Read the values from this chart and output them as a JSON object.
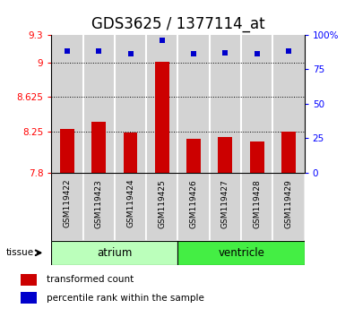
{
  "title": "GDS3625 / 1377114_at",
  "samples": [
    "GSM119422",
    "GSM119423",
    "GSM119424",
    "GSM119425",
    "GSM119426",
    "GSM119427",
    "GSM119428",
    "GSM119429"
  ],
  "red_values": [
    8.28,
    8.35,
    8.24,
    9.01,
    8.17,
    8.19,
    8.14,
    8.25
  ],
  "blue_values": [
    88,
    88,
    86,
    96,
    86,
    87,
    86,
    88
  ],
  "ylim_left": [
    7.8,
    9.3
  ],
  "ylim_right": [
    0,
    100
  ],
  "yticks_left": [
    7.8,
    8.25,
    8.625,
    9.0,
    9.3
  ],
  "yticks_left_labels": [
    "7.8",
    "8.25",
    "8.625",
    "9",
    "9.3"
  ],
  "yticks_right": [
    0,
    25,
    50,
    75,
    100
  ],
  "yticks_right_labels": [
    "0",
    "25",
    "50",
    "75",
    "100%"
  ],
  "grid_yticks": [
    9.0,
    8.625,
    8.25,
    7.8
  ],
  "bar_color": "#CC0000",
  "dot_color": "#0000CC",
  "atrium_color": "#BBFFBB",
  "ventricle_color": "#44EE44",
  "bg_color": "#D3D3D3",
  "title_fontsize": 12,
  "bar_width": 0.45,
  "n_atrium": 4,
  "n_ventricle": 4
}
